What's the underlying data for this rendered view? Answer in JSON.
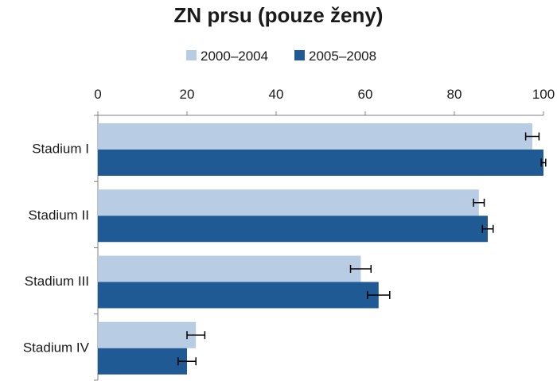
{
  "chart_data": {
    "type": "bar",
    "orientation": "horizontal",
    "title": "ZN prsu (pouze ženy)",
    "categories": [
      "Stadium I",
      "Stadium II",
      "Stadium III",
      "Stadium IV"
    ],
    "series": [
      {
        "name": "2000–2004",
        "color": "#b8cce4",
        "values": [
          97.5,
          85.5,
          59.0,
          22.0
        ],
        "error": [
          1.5,
          1.2,
          2.3,
          2.0
        ]
      },
      {
        "name": "2005–2008",
        "color": "#1f5a94",
        "values": [
          100.0,
          87.5,
          63.0,
          20.0
        ],
        "error": [
          0.5,
          1.2,
          2.5,
          2.0
        ]
      }
    ],
    "xlim": [
      0,
      100
    ],
    "xticks": [
      0,
      20,
      40,
      60,
      80,
      100
    ],
    "tick_labels": [
      "0",
      "20",
      "40",
      "60",
      "80",
      "100"
    ],
    "xaxis_position": "top",
    "legend_position": "top",
    "grid": false
  }
}
